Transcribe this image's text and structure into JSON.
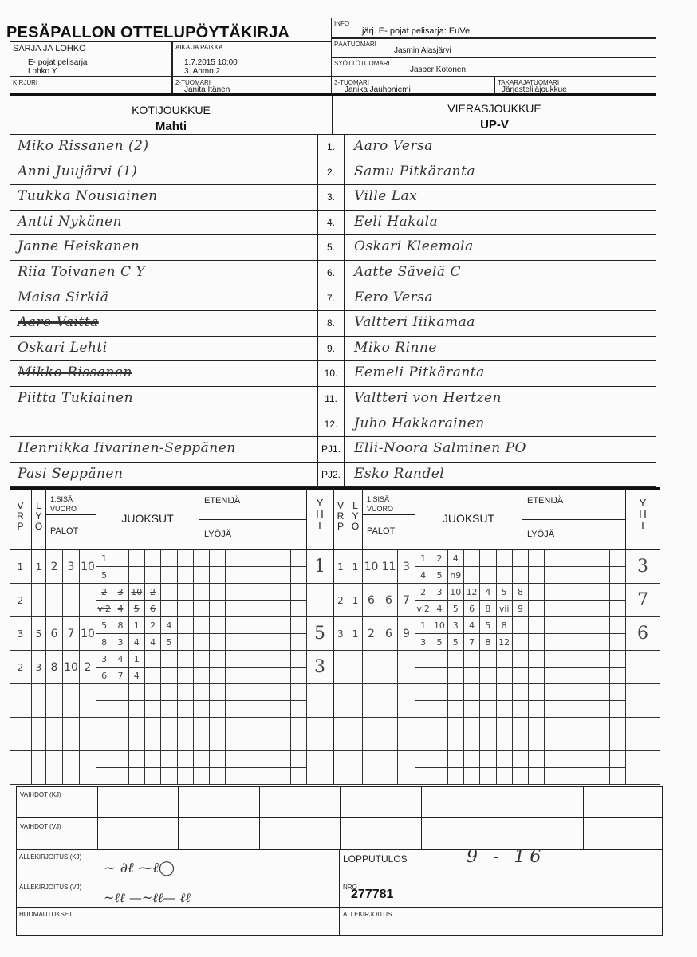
{
  "form": {
    "title": "PESÄPALLON OTTELUPÖYTÄKIRJA",
    "info_label": "INFO",
    "info": "järj. E- pojat pelisarja: EuVe",
    "sarja_label": "SARJA JA LOHKO",
    "sarja": "E- pojat pelisarja",
    "lohko": "Lohko Y",
    "aika_label": "AIKA JA PAIKKA",
    "aika": "1.7.2015 10:00",
    "paikka": "3. Ahmo 2",
    "paatuomari_label": "PÄÄTUOMARI",
    "paatuomari": "Jasmin Alasjärvi",
    "syottotuomari_label": "SYÖTTÖTUOMARI",
    "syottotuomari": "Jasper Kotonen",
    "kirjuri_label": "KIRJURI",
    "tuomari2_label": "2-TUOMARI",
    "tuomari2": "Janita Itänen",
    "tuomari3_label": "3-TUOMARI",
    "tuomari3": "Janika Jauhoniemi",
    "takaraja_label": "TAKARAJATUOMARI",
    "takaraja": "Järjestelijäjoukkue",
    "home_label": "KOTIJOUKKUE",
    "home_team": "Mahti",
    "away_label": "VIERASJOUKKUE",
    "away_team": "UP-V"
  },
  "roster": {
    "numbers": [
      "1.",
      "2.",
      "3.",
      "4.",
      "5.",
      "6.",
      "7.",
      "8.",
      "9.",
      "10.",
      "11.",
      "12.",
      "PJ1.",
      "PJ2."
    ],
    "home": [
      "Miko Rissanen (2)",
      "Anni Juujärvi (1)",
      "Tuukka Nousiainen",
      "Antti Nykänen",
      "Janne Heiskanen",
      "Riia Toivanen  C  Y",
      "Maisa Sirkiä",
      "Aaro Vaitta",
      "Oskari Lehti",
      "Mikko Rissanen",
      "Piitta Tukiainen",
      "",
      "Henriikka Iivarinen-Seppänen",
      "Pasi Seppänen"
    ],
    "home_struck": [
      false,
      false,
      false,
      false,
      false,
      false,
      false,
      true,
      false,
      true,
      false,
      false,
      false,
      false
    ],
    "away": [
      "Aaro Versa",
      "Samu Pitkäranta",
      "Ville Lax",
      "Eeli Hakala",
      "Oskari Kleemola",
      "Aatte Sävelä  C",
      "Eero Versa",
      "Valtteri Iiikamaa",
      "Miko Rinne",
      "Eemeli Pitkäranta",
      "Valtteri von Hertzen",
      "Juho Hakkarainen",
      "Elli-Noora Salminen PO",
      "Esko Randel"
    ]
  },
  "innings_header": {
    "v": "V R P",
    "l": "L Y Ö",
    "sisa": "1.SISÄ VUORO",
    "palot": "PALOT",
    "juoksut": "JUOKSUT",
    "etenija": "ETENIJÄ",
    "lyoja": "LYÖJÄ",
    "yht": "Y H T"
  },
  "innings": {
    "home": [
      {
        "v": "1",
        "l": "1",
        "palot": [
          "2",
          "3",
          "10"
        ],
        "top": [
          "1"
        ],
        "bottom": [
          "5"
        ],
        "yht": "1"
      },
      {
        "v": "2",
        "l": "",
        "palot": [
          "",
          "",
          ""
        ],
        "top": [
          "2",
          "3",
          "10",
          "2"
        ],
        "bottom": [
          "vi2",
          "4",
          "5",
          "6"
        ],
        "yht": "",
        "struck": true
      },
      {
        "v": "3",
        "l": "5",
        "palot": [
          "6",
          "7",
          "10"
        ],
        "top": [
          "5",
          "8",
          "1",
          "2",
          "4"
        ],
        "bottom": [
          "8",
          "3",
          "4",
          "4",
          "5"
        ],
        "yht": "5"
      },
      {
        "v": "2",
        "l": "3",
        "palot": [
          "8",
          "10",
          "2"
        ],
        "top": [
          "3",
          "4",
          "1"
        ],
        "bottom": [
          "6",
          "7",
          "4"
        ],
        "yht": "3"
      }
    ],
    "away": [
      {
        "v": "1",
        "l": "1",
        "palot": [
          "10",
          "11",
          "3"
        ],
        "top": [
          "1",
          "2",
          "4"
        ],
        "bottom": [
          "4",
          "5",
          "h9"
        ],
        "yht": "3"
      },
      {
        "v": "2",
        "l": "1",
        "palot": [
          "6",
          "6",
          "7"
        ],
        "top": [
          "2",
          "3",
          "10",
          "12",
          "4",
          "5",
          "8"
        ],
        "bottom": [
          "vi2",
          "4",
          "5",
          "6",
          "8",
          "vii",
          "9"
        ],
        "yht": "7"
      },
      {
        "v": "3",
        "l": "1",
        "palot": [
          "2",
          "6",
          "9"
        ],
        "top": [
          "1",
          "10",
          "3",
          "4",
          "5",
          "8"
        ],
        "bottom": [
          "3",
          "5",
          "5",
          "7",
          "8",
          "12"
        ],
        "yht": "6"
      }
    ]
  },
  "bottom": {
    "vaihdot_kj": "VAIHDOT (KJ)",
    "vaihdot_vj": "VAIHDOT (VJ)",
    "allekirjoitus_kj": "ALLEKIRJOITUS (KJ)",
    "allekirjoitus_vj": "ALLEKIRJOITUS (VJ)",
    "huomautukset": "HUOMAUTUKSET",
    "lopputulos_label": "LOPPUTULOS",
    "lopputulos": "9 - 16",
    "nro_label": "NRO",
    "nro": "277781",
    "allekirjoitus": "ALLEKIRJOITUS"
  }
}
